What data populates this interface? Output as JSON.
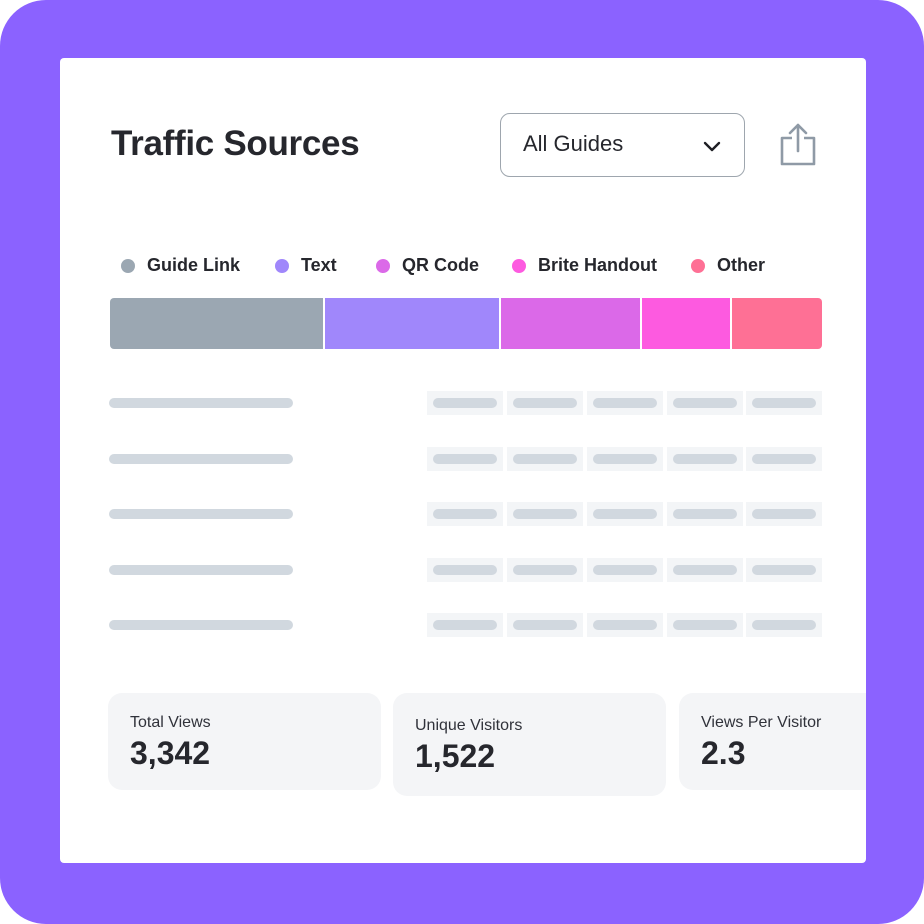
{
  "header": {
    "title": "Traffic Sources",
    "filter_value": "All Guides",
    "filter_icon": "chevron-down-icon",
    "share_icon": "share-icon"
  },
  "legend": [
    {
      "label": "Guide Link",
      "color": "#9ba7b2"
    },
    {
      "label": "Text",
      "color": "#a087fb"
    },
    {
      "label": "QR Code",
      "color": "#db69e8"
    },
    {
      "label": "Brite Handout",
      "color": "#fd5ae0"
    },
    {
      "label": "Other",
      "color": "#fe7095"
    }
  ],
  "chart_data": {
    "type": "bar",
    "stacked": true,
    "orientation": "horizontal",
    "categories": [
      "Guide Link",
      "Text",
      "QR Code",
      "Brite Handout",
      "Other"
    ],
    "values": [
      30.1,
      24.7,
      19.8,
      12.6,
      12.5
    ],
    "unit": "percent of views (estimated)"
  },
  "table": {
    "row_count": 5,
    "columns_per_row": 5
  },
  "stats": [
    {
      "label": "Total Views",
      "value": "3,342"
    },
    {
      "label": "Unique Visitors",
      "value": "1,522"
    },
    {
      "label": "Views Per Visitor",
      "value": "2.3"
    }
  ]
}
